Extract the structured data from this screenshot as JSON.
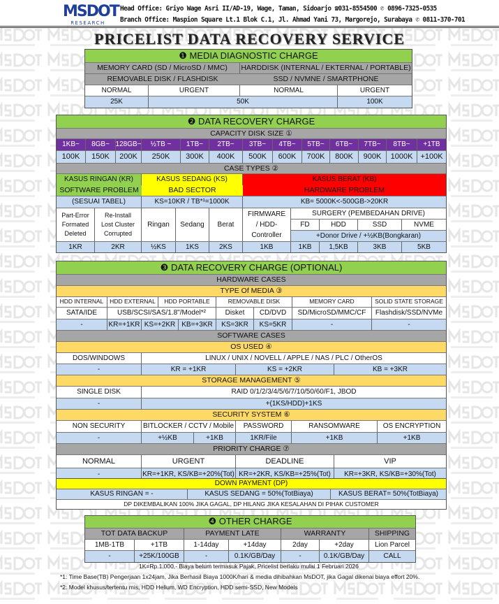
{
  "watermark": {
    "brand": "MSDOT",
    "sub": "RESEARCH"
  },
  "header": {
    "logo_brand": "MSDOT",
    "logo_sub": "RESEARCH",
    "head_office": "Head Office: Griyo Wage Asri II/AD-19, Wage, Taman, Sidoarjo ☎031-8554500 ✆ 0896-7325-0535",
    "branch_office": "Branch Office: Maspion Square Lt.1 Blok C.1, Jl. Ahmad Yani 73, Margorejo, Surabaya ✆ 0811-370-701"
  },
  "title": "PRICELIST DATA RECOVERY SERVICE",
  "s1": {
    "title": "❶ MEDIA DIAGNOSTIC CHARGE",
    "group_a_line1": "MEMORY CARD (SD / MicroSD / MMC)",
    "group_a_line2": "REMOVABLE DISK / FLASHDISK",
    "group_b_line1": "HARDDISK (INTERNAL / EKTERNAL / PORTABLE)",
    "group_b_line2": "SSD / NVMNE / SMARTPHONE",
    "levels": [
      "NORMAL",
      "URGENT",
      "NORMAL",
      "URGENT"
    ],
    "prices": [
      "25K",
      "50K",
      "100K"
    ]
  },
  "s2": {
    "title": "❷ DATA RECOVERY CHARGE",
    "capacity_title": "CAPACITY DISK SIZE ①",
    "capacities": [
      "1KB~",
      "8GB~",
      "128GB~",
      "½TB ~",
      "1TB~",
      "2TB~",
      "3TB~",
      "4TB~",
      "5TB~",
      "6TB~",
      "7TB~",
      "8TB~",
      "+1TB"
    ],
    "capacity_prices": [
      "100K",
      "150K",
      "200K",
      "250K",
      "300K",
      "400K",
      "500K",
      "600K",
      "700K",
      "800K",
      "900K",
      "1000K",
      "+100K"
    ],
    "case_title": "CASE TYPES ②",
    "kr": {
      "name": "KASUS RINGAN (KR)",
      "desc": "SOFTWARE PROBLEM",
      "rule": "(SESUAI TABEL)"
    },
    "ks": {
      "name": "KASUS SEDANG (KS)",
      "desc": "BAD SECTOR",
      "rule": "KS=10KR / TB*¹=1000K"
    },
    "kb": {
      "name": "KASUS BERAT (KB)",
      "desc": "HARDWARE PROBLEM",
      "rule": "KB= 5000K<-500GB->20KR"
    },
    "kr_items": [
      {
        "l1": "Part-Error",
        "l2": "Formated",
        "l3": "Deleted",
        "price": "1KR"
      },
      {
        "l1": "Re-Install",
        "l2": "Lost Cluster",
        "l3": "Corrupted",
        "price": "2KR"
      }
    ],
    "ks_items": [
      {
        "label": "Ringan",
        "price": "½KS"
      },
      {
        "label": "Sedang",
        "price": "1KS"
      },
      {
        "label": "Berat",
        "price": "2KS"
      }
    ],
    "firmware": {
      "l1": "FIRMWARE",
      "l2": "/ HDD-",
      "l3": "Controller",
      "price": "1KB"
    },
    "surgery": {
      "title": "SURGERY (PEMBEDAHAN DRIVE)",
      "items": [
        "FD",
        "HDD",
        "SSD",
        "NVME"
      ],
      "donor": "+Donor Drive  / +½KB(Bongkaran)",
      "prices": [
        "1KB",
        "1,5KB",
        "3KB",
        "5KB"
      ]
    }
  },
  "s3": {
    "title": "❸ DATA RECOVERY CHARGE (OPTIONAL)",
    "hw_title": "HARDWARE CASES",
    "media_title": "TYPE Of MEDIA ③",
    "media_headers": [
      "HDD INTERNAL",
      "HDD EXTERNAL",
      "HDD PORTABLE",
      "REMOVABLE DISK",
      "MEMORY CARD",
      "SOLID STATE STORAGE"
    ],
    "media_types": [
      "SATA/IDE",
      "USB/SCSI/SAS/1.8\"/Model*²",
      "Disket",
      "CD/DVD",
      "SD/MicroSD/MMC/CF",
      "Flashdisk/SSD/NVMe"
    ],
    "media_prices": [
      "-",
      "KR=+1KR",
      "KS=+2KR",
      "KB=+3KR",
      "KS=3KR",
      "KS=5KR",
      "-",
      "-"
    ],
    "sw_title": "SOFTWARE CASES",
    "os_title": "OS USED ④",
    "os": [
      "DOS/WINDOWS",
      "LINUX / UNIX / NOVELL / APPLE / NAS / PLC / OtherOS"
    ],
    "os_prices": [
      "-",
      "KR = +1KR",
      "KS = +2KR",
      "KB = +3KR"
    ],
    "storage_title": "STORAGE MANAGEMENT ⑤",
    "storage": [
      "SINGLE DISK",
      "RAID 0/1/2/3/4/5/6/7/10/50/60/F1, JBOD"
    ],
    "storage_prices": [
      "-",
      "+(1KS/HDD)+1KS"
    ],
    "security_title": "SECURITY SYSTEM ⑥",
    "security": [
      "NON SECURITY",
      "BITLOCKER / CCTV / Mobile",
      "PASSWORD",
      "RANSOMWARE",
      "OS ENCRYPTION"
    ],
    "security_prices": [
      "-",
      "+½KB",
      "+1KB",
      "1KR/File",
      "+1KB",
      "+1KB"
    ],
    "priority_title": "PRIORITY CHARGE ⑦",
    "priority": [
      "NORMAL",
      "URGENT",
      "DEADLINE",
      "VIP"
    ],
    "priority_prices": [
      "-",
      "KR=+1KR, KS/KB=+20%(Tot)",
      "KR=+2KR, KS/KB=+25%(Tot)",
      "KR=+3KR, KS/KB=+30%(Tot)"
    ]
  },
  "dp": {
    "title": "DOWN PAYMENT (DP)",
    "items": [
      "KASUS RINGAN = -",
      "KASUS SEDANG = 50%(TotBiaya)",
      "KASUS BERAT= 50%(TotBiaya)"
    ],
    "note": "DP DIKEMBALIKAN 100% JIKA GAGAL, DP HILANG JIKA KESALAHAN DI PIHAK CUSTOMER"
  },
  "s4": {
    "title": "❹ OTHER CHARGE",
    "headers": [
      "TOT DATA BACKUP",
      "PAYMENT LATE",
      "WARRANTY",
      "SHIPPING"
    ],
    "sub": [
      "1MB-1TB",
      "+1TB",
      "1-14day",
      "+14day",
      "2day",
      "+2day",
      "Lion Parcel"
    ],
    "prices": [
      "-",
      "+25K/100GB",
      "-",
      "0.1K/GB/Day",
      "-",
      "0.1K/GB/Day",
      "CALL"
    ]
  },
  "notes": {
    "pricing": "1K=Rp.1.000,-   Biaya belum termasuk Pajak,  Pricelist berlaku mulai 1 Februari 2026",
    "fn1": "*1: Time Base(TB) Pengerjaan 1x24jam, Jika Berhasil Biaya 1000K/hari & media dihibahkan MsDOT, jika Gagal dikenai biaya effort 20%.",
    "fn2": "*2: Model khusus/tertentu mis, HDD Helium, WD Encryption, HDD semi-SSD, New Models"
  },
  "colors": {
    "green": "#92d050",
    "gray": "#a6a6a6",
    "purple": "#7030a0",
    "light_blue": "#c5d9f1",
    "yellow": "#ffff00",
    "red": "#ff0000",
    "gold": "#ffd966",
    "logo_blue": "#1f3f9a"
  }
}
